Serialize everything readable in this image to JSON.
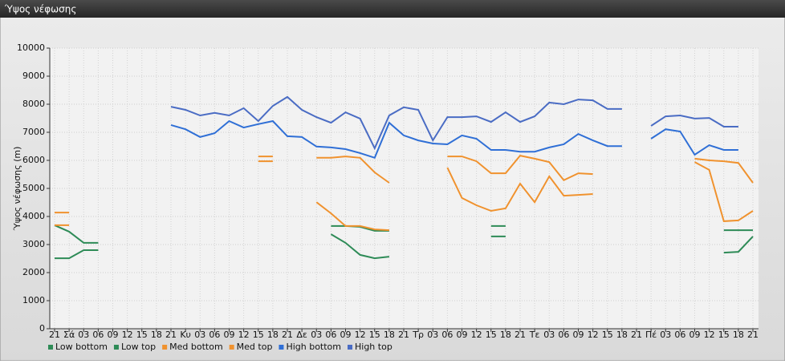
{
  "window_title": "Ύψος νέφωσης",
  "chart_data": {
    "type": "line",
    "y_label": "Ύψος νέφωσης (m)",
    "categories": [
      "21",
      "Σά",
      "03",
      "06",
      "09",
      "12",
      "15",
      "18",
      "21",
      "Κυ",
      "03",
      "06",
      "09",
      "12",
      "15",
      "18",
      "21",
      "Δε",
      "03",
      "06",
      "09",
      "12",
      "15",
      "18",
      "21",
      "Τρ",
      "03",
      "06",
      "09",
      "12",
      "15",
      "18",
      "21",
      "Τε",
      "03",
      "06",
      "09",
      "12",
      "15",
      "18",
      "21",
      "Πέ",
      "03",
      "06",
      "09",
      "12",
      "15",
      "18",
      "21"
    ],
    "ylim": [
      0,
      10000
    ],
    "yticks": [
      0,
      1000,
      2000,
      3000,
      4000,
      5000,
      6000,
      7000,
      8000,
      9000,
      10000
    ],
    "grid": true,
    "legend": "bottom-left",
    "series": [
      {
        "name": "Low bottom",
        "color": "#2e8b57",
        "values": [
          2510,
          2510,
          2800,
          2800,
          null,
          null,
          null,
          null,
          null,
          null,
          null,
          null,
          null,
          null,
          null,
          null,
          null,
          null,
          null,
          3370,
          3060,
          2630,
          2510,
          2570,
          null,
          null,
          null,
          null,
          null,
          null,
          3290,
          3290,
          null,
          null,
          null,
          null,
          null,
          null,
          null,
          null,
          null,
          null,
          null,
          null,
          null,
          null,
          2710,
          2740,
          3290
        ]
      },
      {
        "name": "Low top",
        "color": "#2e8b57",
        "values": [
          3690,
          3460,
          3060,
          3060,
          null,
          null,
          null,
          null,
          null,
          null,
          null,
          null,
          null,
          null,
          null,
          null,
          null,
          null,
          null,
          3660,
          3660,
          3630,
          3490,
          3490,
          null,
          null,
          null,
          null,
          null,
          null,
          3660,
          3660,
          null,
          null,
          null,
          null,
          null,
          null,
          null,
          null,
          null,
          null,
          null,
          null,
          null,
          null,
          3510,
          3510,
          3510
        ]
      },
      {
        "name": "Med bottom",
        "color": "#f0922e",
        "values": [
          3690,
          3690,
          null,
          null,
          null,
          null,
          null,
          null,
          null,
          null,
          null,
          null,
          null,
          null,
          5970,
          5970,
          null,
          null,
          4510,
          4110,
          3660,
          3660,
          3540,
          3510,
          null,
          null,
          null,
          5740,
          4660,
          4400,
          4200,
          4290,
          5170,
          4510,
          5430,
          4740,
          4770,
          4800,
          null,
          null,
          null,
          null,
          null,
          null,
          5940,
          5660,
          3830,
          3860,
          4200
        ]
      },
      {
        "name": "Med top",
        "color": "#f0922e",
        "values": [
          4140,
          4140,
          null,
          null,
          null,
          null,
          null,
          null,
          null,
          null,
          null,
          null,
          null,
          null,
          6140,
          6140,
          null,
          null,
          6090,
          6090,
          6140,
          6090,
          5570,
          5200,
          null,
          null,
          null,
          6140,
          6140,
          5970,
          5540,
          5540,
          6170,
          6060,
          5940,
          5290,
          5540,
          5510,
          null,
          null,
          null,
          null,
          null,
          null,
          6060,
          6000,
          5970,
          5910,
          5200
        ]
      },
      {
        "name": "High bottom",
        "color": "#2f6fd6",
        "values": [
          null,
          null,
          null,
          null,
          null,
          null,
          null,
          null,
          7260,
          7110,
          6830,
          6970,
          7400,
          7170,
          7290,
          7400,
          6860,
          6830,
          6490,
          6460,
          6400,
          6260,
          6090,
          7340,
          6890,
          6710,
          6600,
          6570,
          6890,
          6770,
          6370,
          6370,
          6310,
          6310,
          6460,
          6570,
          6940,
          6710,
          6510,
          6510,
          null,
          6770,
          7110,
          7030,
          6200,
          6540,
          6370,
          6370,
          null
        ]
      },
      {
        "name": "High top",
        "color": "#4a6cc4",
        "values": [
          null,
          null,
          null,
          null,
          null,
          null,
          null,
          null,
          7910,
          7800,
          7600,
          7690,
          7600,
          7860,
          7400,
          7940,
          8260,
          7800,
          7540,
          7340,
          7710,
          7490,
          6430,
          7600,
          7890,
          7800,
          6710,
          7540,
          7540,
          7570,
          7370,
          7710,
          7370,
          7570,
          8060,
          8000,
          8170,
          8140,
          7830,
          7830,
          null,
          7230,
          7570,
          7600,
          7490,
          7510,
          7200,
          7200,
          null
        ]
      }
    ]
  }
}
